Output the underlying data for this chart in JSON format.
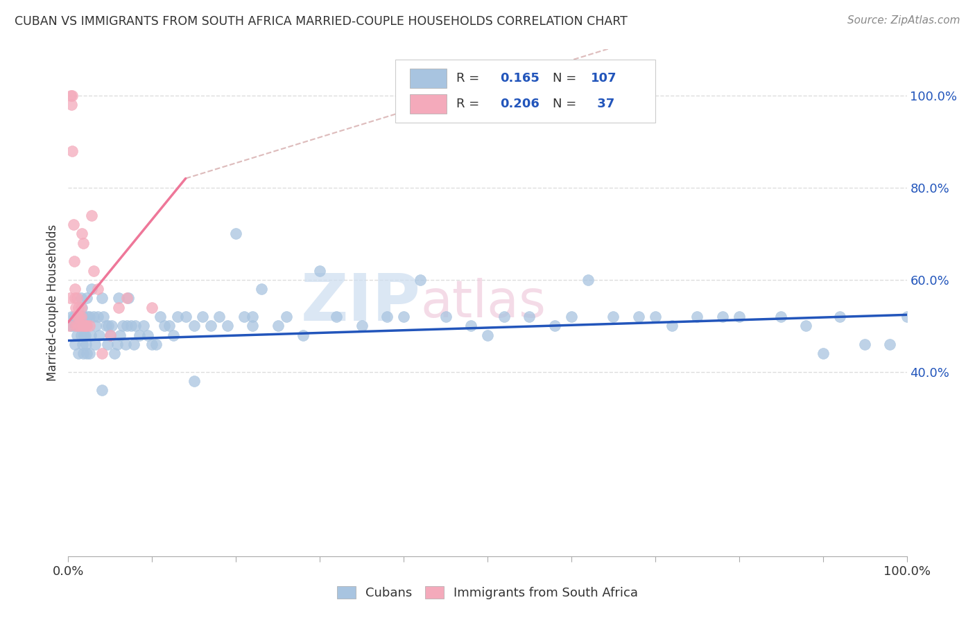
{
  "title": "CUBAN VS IMMIGRANTS FROM SOUTH AFRICA MARRIED-COUPLE HOUSEHOLDS CORRELATION CHART",
  "source": "Source: ZipAtlas.com",
  "ylabel": "Married-couple Households",
  "ytick_labels": [
    "100.0%",
    "80.0%",
    "60.0%",
    "40.0%"
  ],
  "ytick_values": [
    1.0,
    0.8,
    0.6,
    0.4
  ],
  "legend_labels": [
    "Cubans",
    "Immigrants from South Africa"
  ],
  "color_blue": "#A8C4E0",
  "color_pink": "#F4AABB",
  "line_blue": "#2255BB",
  "line_pink": "#EE7799",
  "line_dashed_color": "#DDBBBB",
  "background_color": "#FFFFFF",
  "watermark_zip_color": "#CCDDEE",
  "watermark_atlas_color": "#DDCCCC",
  "blue_points_x": [
    0.003,
    0.004,
    0.005,
    0.007,
    0.008,
    0.009,
    0.01,
    0.01,
    0.011,
    0.012,
    0.012,
    0.013,
    0.014,
    0.015,
    0.015,
    0.016,
    0.017,
    0.017,
    0.018,
    0.018,
    0.019,
    0.02,
    0.02,
    0.021,
    0.022,
    0.022,
    0.023,
    0.025,
    0.025,
    0.027,
    0.028,
    0.03,
    0.032,
    0.033,
    0.035,
    0.037,
    0.04,
    0.042,
    0.045,
    0.047,
    0.048,
    0.05,
    0.052,
    0.055,
    0.058,
    0.06,
    0.062,
    0.065,
    0.068,
    0.07,
    0.072,
    0.075,
    0.078,
    0.08,
    0.085,
    0.09,
    0.095,
    0.1,
    0.105,
    0.11,
    0.115,
    0.12,
    0.125,
    0.13,
    0.14,
    0.15,
    0.16,
    0.17,
    0.18,
    0.19,
    0.2,
    0.21,
    0.22,
    0.23,
    0.25,
    0.26,
    0.28,
    0.3,
    0.32,
    0.35,
    0.38,
    0.4,
    0.42,
    0.45,
    0.48,
    0.5,
    0.52,
    0.55,
    0.58,
    0.6,
    0.62,
    0.65,
    0.68,
    0.7,
    0.72,
    0.75,
    0.78,
    0.8,
    0.85,
    0.88,
    0.9,
    0.92,
    0.95,
    0.98,
    1.0,
    0.22,
    0.04,
    0.15
  ],
  "blue_points_y": [
    0.5,
    0.52,
    0.5,
    0.52,
    0.46,
    0.5,
    0.48,
    0.52,
    0.5,
    0.52,
    0.44,
    0.5,
    0.5,
    0.56,
    0.48,
    0.54,
    0.5,
    0.46,
    0.44,
    0.52,
    0.48,
    0.48,
    0.5,
    0.46,
    0.44,
    0.56,
    0.52,
    0.52,
    0.44,
    0.48,
    0.58,
    0.52,
    0.46,
    0.5,
    0.52,
    0.48,
    0.56,
    0.52,
    0.5,
    0.46,
    0.5,
    0.48,
    0.5,
    0.44,
    0.46,
    0.56,
    0.48,
    0.5,
    0.46,
    0.5,
    0.56,
    0.5,
    0.46,
    0.5,
    0.48,
    0.5,
    0.48,
    0.46,
    0.46,
    0.52,
    0.5,
    0.5,
    0.48,
    0.52,
    0.52,
    0.5,
    0.52,
    0.5,
    0.52,
    0.5,
    0.7,
    0.52,
    0.5,
    0.58,
    0.5,
    0.52,
    0.48,
    0.62,
    0.52,
    0.5,
    0.52,
    0.52,
    0.6,
    0.52,
    0.5,
    0.48,
    0.52,
    0.52,
    0.5,
    0.52,
    0.6,
    0.52,
    0.52,
    0.52,
    0.5,
    0.52,
    0.52,
    0.52,
    0.52,
    0.5,
    0.44,
    0.52,
    0.46,
    0.46,
    0.52,
    0.52,
    0.36,
    0.38
  ],
  "pink_points_x": [
    0.001,
    0.002,
    0.003,
    0.004,
    0.005,
    0.005,
    0.006,
    0.007,
    0.008,
    0.008,
    0.009,
    0.009,
    0.01,
    0.01,
    0.011,
    0.012,
    0.012,
    0.013,
    0.014,
    0.015,
    0.015,
    0.016,
    0.017,
    0.018,
    0.019,
    0.02,
    0.021,
    0.022,
    0.025,
    0.028,
    0.03,
    0.035,
    0.04,
    0.05,
    0.06,
    0.07,
    0.1
  ],
  "pink_points_y": [
    0.5,
    0.56,
    1.0,
    0.98,
    1.0,
    0.88,
    0.72,
    0.64,
    0.58,
    0.56,
    0.54,
    0.5,
    0.56,
    0.52,
    0.5,
    0.52,
    0.54,
    0.52,
    0.5,
    0.54,
    0.52,
    0.7,
    0.5,
    0.68,
    0.5,
    0.5,
    0.5,
    0.5,
    0.5,
    0.74,
    0.62,
    0.58,
    0.44,
    0.48,
    0.54,
    0.56,
    0.54
  ],
  "blue_trend_x": [
    0.0,
    1.0
  ],
  "blue_trend_y": [
    0.468,
    0.524
  ],
  "pink_trend_x": [
    0.0,
    0.14
  ],
  "pink_trend_y": [
    0.508,
    0.82
  ],
  "dashed_line_x": [
    0.14,
    1.0
  ],
  "dashed_line_y": [
    0.82,
    1.3
  ],
  "xlim": [
    0.0,
    1.0
  ],
  "ylim": [
    0.0,
    1.1
  ],
  "grid_yticks": [
    0.4,
    0.6,
    0.8,
    1.0
  ]
}
